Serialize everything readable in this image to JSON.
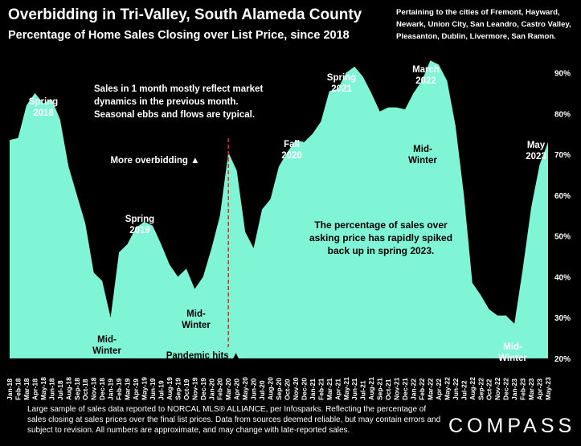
{
  "title": "Overbidding in Tri-Valley, South Alameda County",
  "subtitle": "Percentage of Home Sales Closing over List Price, since 2018",
  "cities_note": "Pertaining to the cities of Fremont, Hayward, Newark, Union City, San Leandro, Castro Valley, Pleasanton, Dublin, Livermore, San Ramon.",
  "footnote": "Large sample of sales data reported to NORCAL MLS® ALLIANCE, per Infosparks. Reflecting the percentage of sales closing at sales prices over the final list prices. Data from sources deemed reliable, but may contain errors and subject to revision. All numbers are approximate, and may change with late-reported sales.",
  "logo": "COMPASS",
  "colors": {
    "background": "#000000",
    "area_fill": "#7ff5d6",
    "pandemic_line": "#c0392b",
    "text_on_area": "#000000"
  },
  "chart_data": {
    "type": "area",
    "x": [
      "Jan-18",
      "Feb-18",
      "Mar-18",
      "Apr-18",
      "May-18",
      "Jun-18",
      "Jul-18",
      "Aug-18",
      "Sep-18",
      "Oct-18",
      "Nov-18",
      "Dec-18",
      "Jan-19",
      "Feb-19",
      "Mar-19",
      "Apr-19",
      "May-19",
      "Jun-19",
      "Jul-19",
      "Aug-19",
      "Sep-19",
      "Oct-19",
      "Nov-19",
      "Dec-19",
      "Jan-20",
      "Feb-20",
      "Mar-20",
      "Apr-20",
      "May-20",
      "Jun-20",
      "Jul-20",
      "Aug-20",
      "Sep-20",
      "Oct-20",
      "Nov-20",
      "Dec-20",
      "Jan-21",
      "Feb-21",
      "Mar-21",
      "Apr-21",
      "May-21",
      "Jun-21",
      "Jul-21",
      "Aug-21",
      "Sep-21",
      "Oct-21",
      "Nov-21",
      "Dec-21",
      "Jan-22",
      "Feb-22",
      "Mar-22",
      "Apr-22",
      "May-22",
      "Jun-22",
      "Jul-22",
      "Aug-22",
      "Sep-22",
      "Oct-22",
      "Nov-22",
      "Dec-22",
      "Jan-23",
      "Feb-23",
      "Mar-23",
      "Apr-23",
      "May-23"
    ],
    "values": [
      73.5,
      74,
      82,
      85,
      82.5,
      83.5,
      78.5,
      67,
      60,
      53,
      41,
      39,
      30,
      46,
      48,
      52,
      53.5,
      52.5,
      48,
      43,
      40,
      42,
      37,
      40,
      47,
      55,
      70.5,
      66,
      51,
      47,
      56.5,
      59,
      67,
      70.5,
      73.5,
      73,
      75,
      78,
      85.5,
      86,
      90,
      91.5,
      89,
      85,
      80.5,
      81.5,
      81.5,
      81,
      85,
      88,
      93,
      92,
      88,
      77,
      60,
      38.5,
      35.5,
      32,
      30.5,
      30.5,
      28.5,
      42,
      57,
      67.5,
      73
    ],
    "y_ticks": [
      "20%",
      "30%",
      "40%",
      "50%",
      "60%",
      "70%",
      "80%",
      "90%"
    ],
    "ylim": [
      20,
      96
    ],
    "grid": false,
    "annotations": {
      "spring_2018": [
        "Spring",
        "2018"
      ],
      "mid_winter_1": [
        "Mid-",
        "Winter"
      ],
      "spring_2019": [
        "Spring",
        "2019"
      ],
      "mid_winter_2": [
        "Mid-",
        "Winter"
      ],
      "more_overbidding": "More overbidding ▲",
      "pandemic_hits": "Pandemic hits ▲",
      "fall_2020": [
        "Fall",
        "2020"
      ],
      "spring_2021": [
        "Spring",
        "2021"
      ],
      "mid_winter_3": [
        "Mid-",
        "Winter"
      ],
      "march_2022": [
        "March",
        "2022"
      ],
      "mid_winter_4": [
        "Mid-",
        "Winter"
      ],
      "may_2023": [
        "May",
        "2023"
      ],
      "sales_note": [
        "Sales in 1 month mostly reflect market",
        "dynamics in the previous month.",
        "Seasonal ebbs and flows are typical."
      ],
      "spike_note": [
        "The percentage of sales over",
        "asking price has rapidly spiked",
        "back up in spring 2023."
      ]
    }
  }
}
